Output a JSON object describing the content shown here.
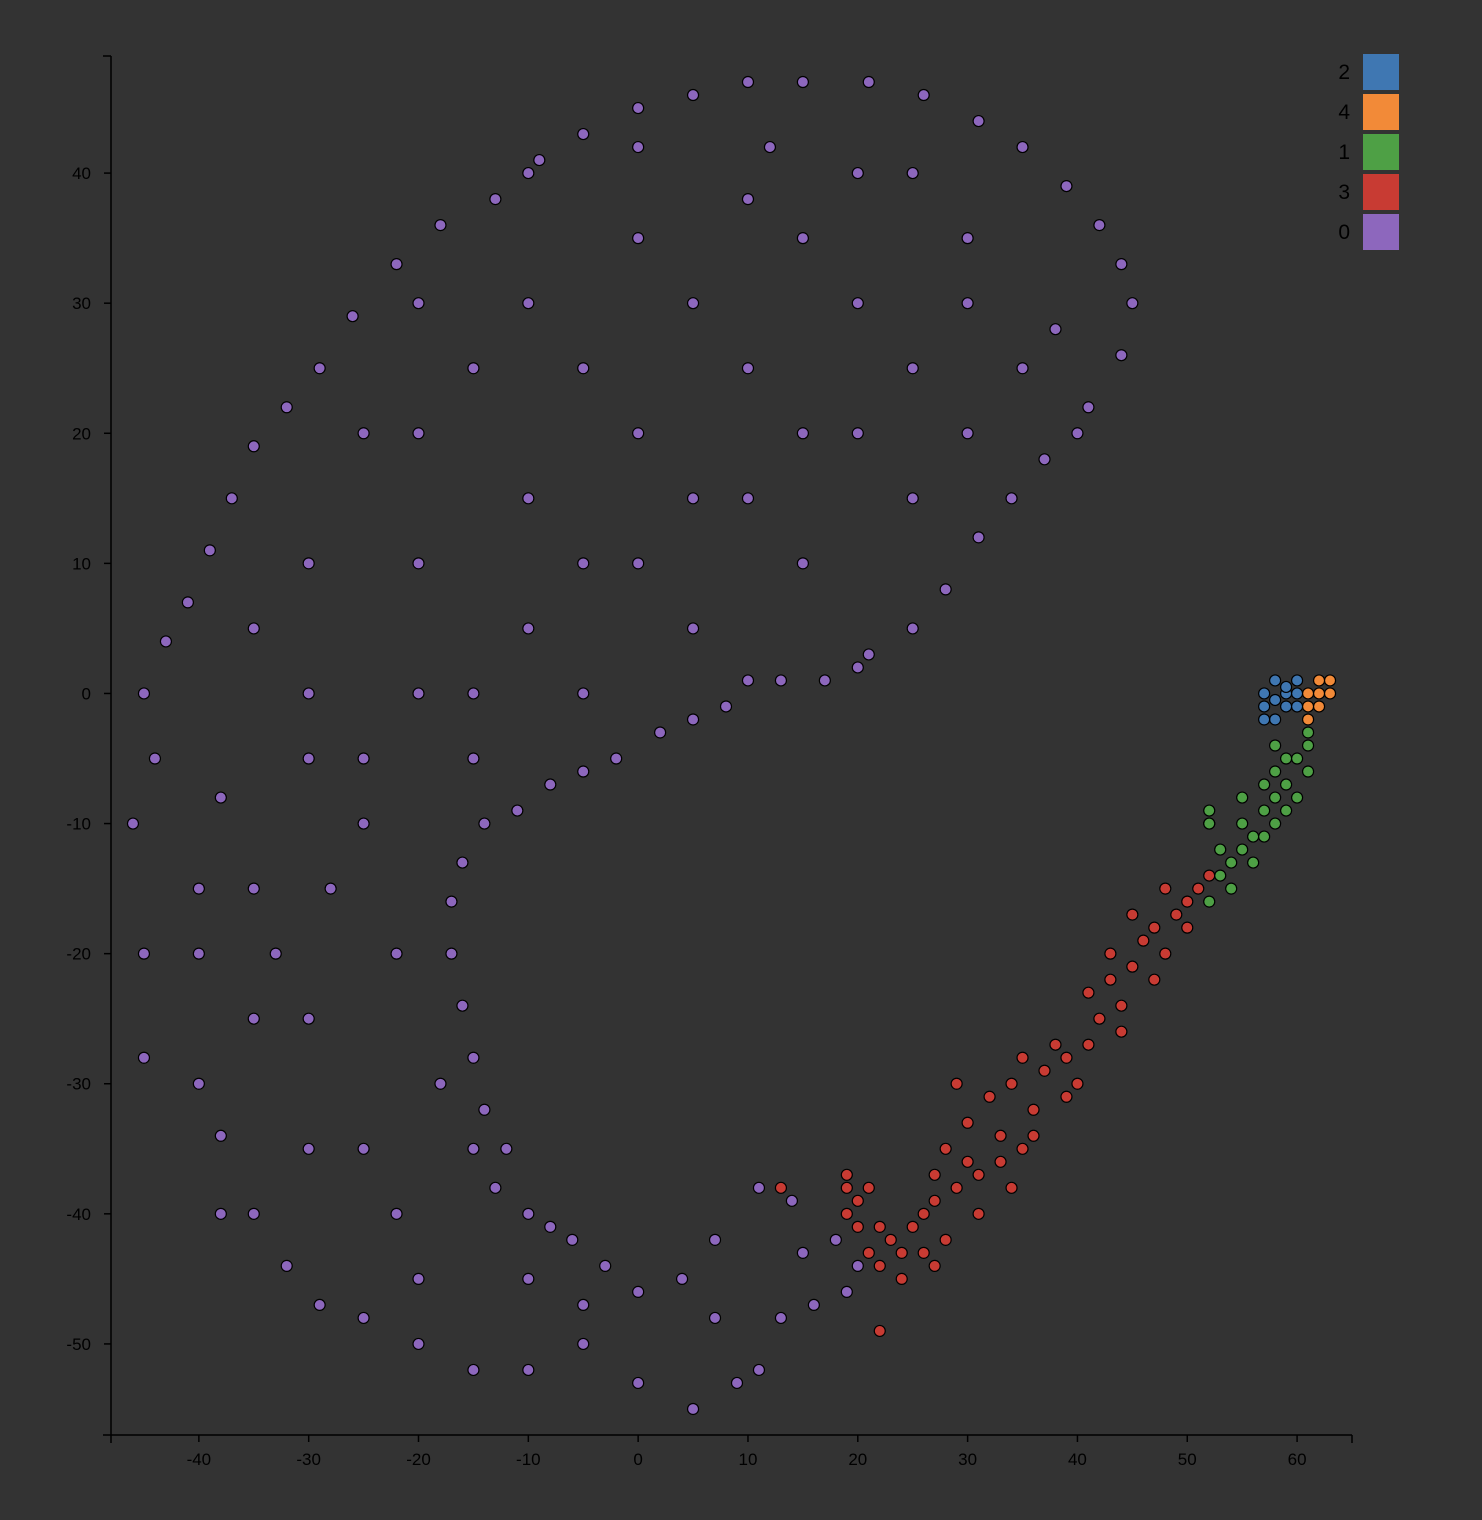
{
  "background_color": "#333333",
  "chart_data": {
    "type": "scatter",
    "title": "",
    "xlabel": "",
    "ylabel": "",
    "xlim": [
      -48,
      65
    ],
    "ylim": [
      -57,
      49
    ],
    "x_ticks": [
      -40,
      -30,
      -20,
      -10,
      0,
      10,
      20,
      30,
      40,
      50,
      60
    ],
    "y_ticks": [
      40,
      30,
      20,
      10,
      0,
      -10,
      -20,
      -30,
      -40,
      -50
    ],
    "x_tick_labels": [
      "-40",
      "-30",
      "-20",
      "-10",
      "0",
      "10",
      "20",
      "30",
      "40",
      "50",
      "60"
    ],
    "y_tick_labels": [
      "40",
      "30",
      "20",
      "10",
      "0",
      "-10",
      "-20",
      "-30",
      "-40",
      "-50"
    ],
    "grid": false,
    "legend_position": "top-right",
    "legend": [
      {
        "label": "2",
        "color": "#3f77b2"
      },
      {
        "label": "4",
        "color": "#f28a38"
      },
      {
        "label": "1",
        "color": "#4ea045"
      },
      {
        "label": "3",
        "color": "#c83b33"
      },
      {
        "label": "0",
        "color": "#8d67bd"
      }
    ],
    "series": [
      {
        "name": "0",
        "color": "#8d67bd",
        "points": [
          [
            -45,
            0
          ],
          [
            -44,
            -5
          ],
          [
            -46,
            -10
          ],
          [
            -45,
            -20
          ],
          [
            -45,
            -28
          ],
          [
            -40,
            -30
          ],
          [
            -38,
            -34
          ],
          [
            -35,
            -40
          ],
          [
            -32,
            -44
          ],
          [
            -29,
            -47
          ],
          [
            -25,
            -48
          ],
          [
            -20,
            -50
          ],
          [
            -15,
            -52
          ],
          [
            -10,
            -52
          ],
          [
            -5,
            -50
          ],
          [
            0,
            -53
          ],
          [
            5,
            -55
          ],
          [
            9,
            -53
          ],
          [
            11,
            -52
          ],
          [
            13,
            -48
          ],
          [
            16,
            -47
          ],
          [
            19,
            -46
          ],
          [
            20,
            -44
          ],
          [
            18,
            -42
          ],
          [
            14,
            -39
          ],
          [
            11,
            -38
          ],
          [
            7,
            -42
          ],
          [
            4,
            -45
          ],
          [
            0,
            -46
          ],
          [
            -3,
            -44
          ],
          [
            -6,
            -42
          ],
          [
            -8,
            -41
          ],
          [
            -10,
            -40
          ],
          [
            -13,
            -38
          ],
          [
            -15,
            -35
          ],
          [
            -14,
            -32
          ],
          [
            -15,
            -28
          ],
          [
            -16,
            -24
          ],
          [
            -17,
            -20
          ],
          [
            -17,
            -16
          ],
          [
            -16,
            -13
          ],
          [
            -14,
            -10
          ],
          [
            -11,
            -9
          ],
          [
            -8,
            -7
          ],
          [
            -5,
            -6
          ],
          [
            -2,
            -5
          ],
          [
            2,
            -3
          ],
          [
            5,
            -2
          ],
          [
            8,
            -1
          ],
          [
            10,
            1
          ],
          [
            13,
            1
          ],
          [
            17,
            1
          ],
          [
            20,
            2
          ],
          [
            21,
            3
          ],
          [
            25,
            5
          ],
          [
            28,
            8
          ],
          [
            31,
            12
          ],
          [
            34,
            15
          ],
          [
            37,
            18
          ],
          [
            41,
            22
          ],
          [
            44,
            26
          ],
          [
            45,
            30
          ],
          [
            44,
            33
          ],
          [
            42,
            36
          ],
          [
            39,
            39
          ],
          [
            35,
            42
          ],
          [
            31,
            44
          ],
          [
            26,
            46
          ],
          [
            21,
            47
          ],
          [
            15,
            47
          ],
          [
            10,
            47
          ],
          [
            5,
            46
          ],
          [
            0,
            45
          ],
          [
            -5,
            43
          ],
          [
            -9,
            41
          ],
          [
            -13,
            38
          ],
          [
            -18,
            36
          ],
          [
            -22,
            33
          ],
          [
            -26,
            29
          ],
          [
            -29,
            25
          ],
          [
            -32,
            22
          ],
          [
            -35,
            19
          ],
          [
            -37,
            15
          ],
          [
            -39,
            11
          ],
          [
            -41,
            7
          ],
          [
            -43,
            4
          ],
          [
            -30,
            10
          ],
          [
            -20,
            20
          ],
          [
            -10,
            30
          ],
          [
            0,
            35
          ],
          [
            10,
            38
          ],
          [
            20,
            40
          ],
          [
            30,
            35
          ],
          [
            35,
            25
          ],
          [
            25,
            15
          ],
          [
            15,
            10
          ],
          [
            5,
            5
          ],
          [
            -5,
            0
          ],
          [
            -15,
            -5
          ],
          [
            -25,
            -10
          ],
          [
            -35,
            -15
          ],
          [
            -40,
            -20
          ],
          [
            -30,
            -25
          ],
          [
            -25,
            -35
          ],
          [
            -20,
            -45
          ],
          [
            -10,
            -45
          ],
          [
            -30,
            0
          ],
          [
            -35,
            5
          ],
          [
            -20,
            10
          ],
          [
            -10,
            15
          ],
          [
            0,
            20
          ],
          [
            10,
            25
          ],
          [
            20,
            30
          ],
          [
            30,
            30
          ],
          [
            38,
            28
          ],
          [
            40,
            20
          ],
          [
            30,
            20
          ],
          [
            20,
            20
          ],
          [
            10,
            15
          ],
          [
            0,
            10
          ],
          [
            -10,
            5
          ],
          [
            -20,
            0
          ],
          [
            -30,
            -5
          ],
          [
            -38,
            -8
          ],
          [
            -40,
            -15
          ],
          [
            -35,
            -25
          ],
          [
            -30,
            -35
          ],
          [
            -22,
            -40
          ],
          [
            -18,
            -30
          ],
          [
            -22,
            -20
          ],
          [
            -28,
            -15
          ],
          [
            -25,
            -5
          ],
          [
            -15,
            0
          ],
          [
            -5,
            10
          ],
          [
            5,
            15
          ],
          [
            15,
            20
          ],
          [
            25,
            25
          ],
          [
            -15,
            25
          ],
          [
            -5,
            25
          ],
          [
            5,
            30
          ],
          [
            15,
            35
          ],
          [
            25,
            40
          ],
          [
            -25,
            20
          ],
          [
            -20,
            30
          ],
          [
            -10,
            40
          ],
          [
            0,
            42
          ],
          [
            12,
            42
          ],
          [
            -33,
            -20
          ],
          [
            -38,
            -40
          ],
          [
            -12,
            -35
          ],
          [
            -5,
            -47
          ],
          [
            7,
            -48
          ],
          [
            15,
            -43
          ]
        ]
      },
      {
        "name": "3",
        "color": "#c83b33",
        "points": [
          [
            19,
            -37
          ],
          [
            19,
            -38
          ],
          [
            20,
            -39
          ],
          [
            21,
            -38
          ],
          [
            20,
            -41
          ],
          [
            19,
            -40
          ],
          [
            21,
            -43
          ],
          [
            22,
            -44
          ],
          [
            24,
            -45
          ],
          [
            23,
            -42
          ],
          [
            25,
            -41
          ],
          [
            26,
            -43
          ],
          [
            27,
            -44
          ],
          [
            28,
            -42
          ],
          [
            26,
            -40
          ],
          [
            27,
            -37
          ],
          [
            29,
            -38
          ],
          [
            28,
            -35
          ],
          [
            30,
            -33
          ],
          [
            31,
            -37
          ],
          [
            32,
            -31
          ],
          [
            33,
            -34
          ],
          [
            34,
            -30
          ],
          [
            35,
            -28
          ],
          [
            36,
            -32
          ],
          [
            37,
            -29
          ],
          [
            38,
            -27
          ],
          [
            39,
            -28
          ],
          [
            40,
            -30
          ],
          [
            41,
            -27
          ],
          [
            42,
            -25
          ],
          [
            41,
            -23
          ],
          [
            43,
            -22
          ],
          [
            44,
            -24
          ],
          [
            45,
            -21
          ],
          [
            46,
            -19
          ],
          [
            47,
            -18
          ],
          [
            48,
            -20
          ],
          [
            49,
            -17
          ],
          [
            50,
            -16
          ],
          [
            51,
            -15
          ],
          [
            52,
            -14
          ],
          [
            50,
            -18
          ],
          [
            47,
            -22
          ],
          [
            44,
            -26
          ],
          [
            39,
            -31
          ],
          [
            35,
            -35
          ],
          [
            31,
            -40
          ],
          [
            27,
            -39
          ],
          [
            24,
            -43
          ],
          [
            33,
            -36
          ],
          [
            36,
            -34
          ],
          [
            29,
            -30
          ],
          [
            30,
            -36
          ],
          [
            34,
            -38
          ],
          [
            22,
            -41
          ],
          [
            45,
            -17
          ],
          [
            43,
            -20
          ],
          [
            48,
            -15
          ],
          [
            52,
            -10
          ],
          [
            13,
            -38
          ],
          [
            22,
            -49
          ]
        ]
      },
      {
        "name": "1",
        "color": "#4ea045",
        "points": [
          [
            52,
            -9
          ],
          [
            52,
            -10
          ],
          [
            53,
            -12
          ],
          [
            54,
            -13
          ],
          [
            53,
            -14
          ],
          [
            55,
            -12
          ],
          [
            56,
            -11
          ],
          [
            55,
            -10
          ],
          [
            57,
            -9
          ],
          [
            58,
            -8
          ],
          [
            59,
            -7
          ],
          [
            58,
            -6
          ],
          [
            59,
            -5
          ],
          [
            60,
            -5
          ],
          [
            61,
            -4
          ],
          [
            61,
            -6
          ],
          [
            60,
            -8
          ],
          [
            59,
            -9
          ],
          [
            58,
            -10
          ],
          [
            57,
            -11
          ],
          [
            56,
            -13
          ],
          [
            54,
            -15
          ],
          [
            52,
            -16
          ],
          [
            57,
            -7
          ],
          [
            58,
            -4
          ],
          [
            61,
            -3
          ],
          [
            55,
            -8
          ]
        ]
      },
      {
        "name": "2",
        "color": "#3f77b2",
        "points": [
          [
            57,
            0
          ],
          [
            57,
            -1
          ],
          [
            58,
            1
          ],
          [
            58,
            -2
          ],
          [
            59,
            0
          ],
          [
            59,
            -1
          ],
          [
            60,
            1
          ],
          [
            60,
            -1
          ],
          [
            58,
            -0.5
          ],
          [
            59,
            0.5
          ],
          [
            57,
            -2
          ],
          [
            60,
            0
          ]
        ]
      },
      {
        "name": "4",
        "color": "#f28a38",
        "points": [
          [
            61,
            0
          ],
          [
            61,
            -1
          ],
          [
            62,
            1
          ],
          [
            62,
            0
          ],
          [
            63,
            1
          ],
          [
            61,
            -2
          ],
          [
            62,
            -1
          ],
          [
            63,
            0
          ]
        ]
      }
    ]
  }
}
